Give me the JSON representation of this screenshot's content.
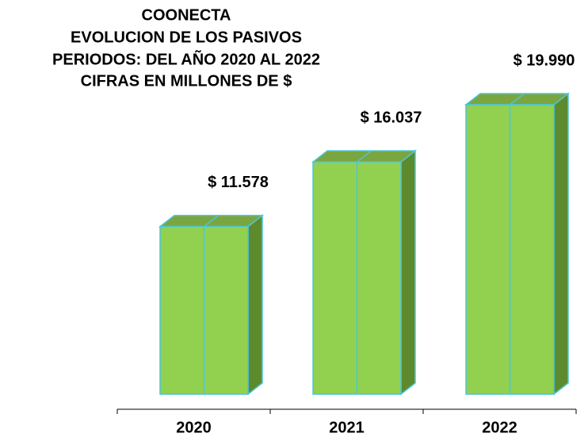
{
  "chart_data": {
    "type": "bar3d",
    "title": [
      "COONECTA",
      "EVOLUCION DE LOS PASIVOS",
      "PERIODOS: DEL AÑO 2020 AL 2022",
      "CIFRAS EN MILLONES DE $"
    ],
    "categories": [
      "2020",
      "2021",
      "2022"
    ],
    "values": [
      11578,
      16037,
      19990
    ],
    "value_labels": [
      "$ 11.578",
      "$ 16.037",
      "$ 19.990"
    ],
    "color": "#92d050"
  }
}
